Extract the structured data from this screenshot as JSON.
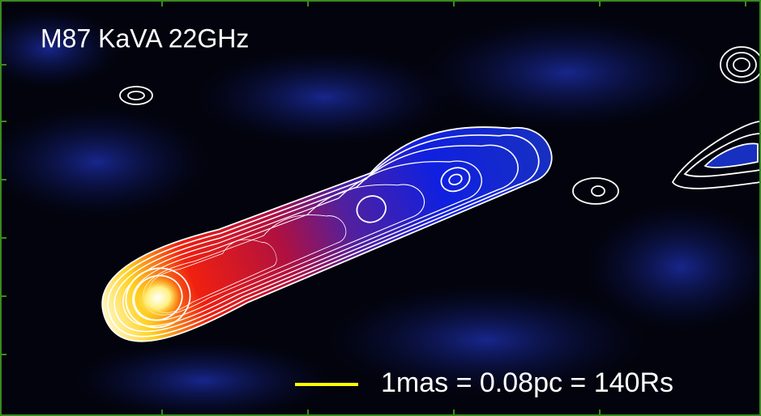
{
  "title": "M87 KaVA 22GHz",
  "scale_label": "1mas = 0.08pc = 140Rs"
}
